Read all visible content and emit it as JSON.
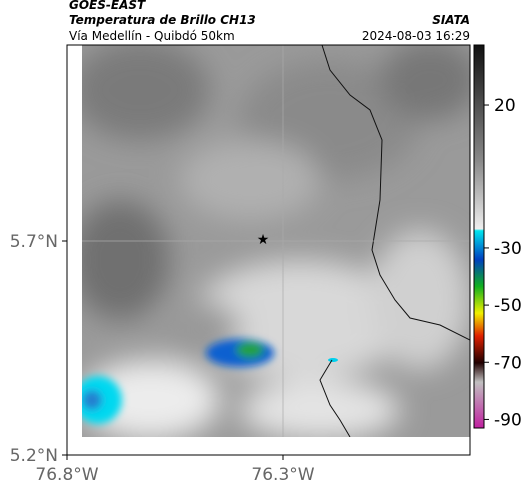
{
  "header": {
    "satellite": "GOES-EAST",
    "product": "Temperatura de Brillo CH13",
    "source": "SIATA",
    "region": "Vía Medellín - Quibdó 50km",
    "timestamp": "2024-08-03 16:29"
  },
  "map": {
    "lat_labels": [
      "5.7°N",
      "5.2°N"
    ],
    "lon_labels": [
      "76.8°W",
      "76.3°W"
    ]
  },
  "colorbar": {
    "lim": [
      -93,
      41
    ],
    "ticks": [
      20,
      -30,
      -50,
      -70,
      -90
    ]
  }
}
